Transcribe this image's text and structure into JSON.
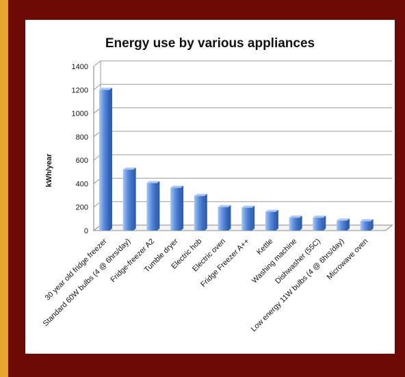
{
  "chart_data": {
    "type": "bar",
    "title": "Energy use by various appliances",
    "xlabel": "",
    "ylabel": "kWh/year",
    "ylim": [
      0,
      1400
    ],
    "yticks": [
      "0",
      "200",
      "400",
      "600",
      "800",
      "1000",
      "1200",
      "1400"
    ],
    "grid": true,
    "categories": [
      "30 year old fridge freezer",
      "Standard 60W bulbs (4 @ 6hrs/day)",
      "Fridge-freezer A2",
      "Tumble dryer",
      "Electric hob",
      "Electric oven",
      "Fridge Freezer A++",
      "Kettle",
      "Washing machine",
      "Dishwasher (55C)",
      "Low energy 11W bulbs (4 @ 6hrs/day)",
      "Microwave oven"
    ],
    "values": [
      1200,
      520,
      405,
      365,
      295,
      200,
      195,
      160,
      110,
      110,
      85,
      80
    ],
    "colors": {
      "bar": "#5b8fe0",
      "bar_dark": "#2f5fb3",
      "bar_light": "#a9c6f4",
      "frame": "#6e0a06",
      "border": "#e8a531"
    }
  }
}
